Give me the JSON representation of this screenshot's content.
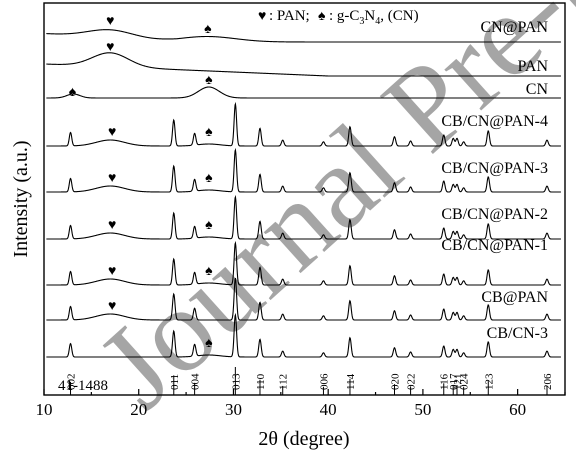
{
  "chart_data": {
    "type": "line",
    "title": "",
    "xlabel": "2θ (degree)",
    "ylabel": "Intensity (a.u.)",
    "xlim": [
      10,
      65
    ],
    "xticks": [
      10,
      20,
      30,
      40,
      50,
      60
    ],
    "legend": {
      "heart_label": ": PAN;",
      "spade_label": ": g-C",
      "spade_sub1": "3",
      "spade_mid": "N",
      "spade_sub2": "4",
      "spade_tail": ", (CN)"
    },
    "reference": {
      "label": "41-1488",
      "lines": [
        {
          "x": 12.8,
          "hkl": "002",
          "h": 0.32
        },
        {
          "x": 23.7,
          "hkl": "011",
          "h": 0.62
        },
        {
          "x": 25.9,
          "hkl": "004",
          "h": 0.28
        },
        {
          "x": 30.2,
          "hkl": "013",
          "h": 1.0
        },
        {
          "x": 32.8,
          "hkl": "110",
          "h": 0.42
        },
        {
          "x": 35.2,
          "hkl": "112",
          "h": 0.14
        },
        {
          "x": 39.5,
          "hkl": "006",
          "h": 0.1
        },
        {
          "x": 42.3,
          "hkl": "114",
          "h": 0.46
        },
        {
          "x": 47.0,
          "hkl": "020",
          "h": 0.22
        },
        {
          "x": 48.7,
          "hkl": "022",
          "h": 0.12
        },
        {
          "x": 52.2,
          "hkl": "116",
          "h": 0.26
        },
        {
          "x": 53.2,
          "hkl": "017",
          "h": 0.18
        },
        {
          "x": 53.6,
          "hkl": "121",
          "h": 0.18
        },
        {
          "x": 54.3,
          "hkl": "024",
          "h": 0.1
        },
        {
          "x": 56.9,
          "hkl": "123",
          "h": 0.36
        },
        {
          "x": 63.1,
          "hkl": "206",
          "h": 0.14
        }
      ]
    },
    "series": [
      {
        "name": "CN@PAN",
        "kind": "cnpan"
      },
      {
        "name": "PAN",
        "kind": "pan"
      },
      {
        "name": "CN",
        "kind": "cn"
      },
      {
        "name": "CB/CN@PAN-4",
        "kind": "composite",
        "pan": true,
        "cn": true
      },
      {
        "name": "CB/CN@PAN-3",
        "kind": "composite",
        "pan": true,
        "cn": true
      },
      {
        "name": "CB/CN@PAN-2",
        "kind": "composite",
        "pan": true,
        "cn": true
      },
      {
        "name": "CB/CN@PAN-1",
        "kind": "composite",
        "pan": true,
        "cn": true
      },
      {
        "name": "CB@PAN",
        "kind": "composite",
        "pan": true,
        "cn": false
      },
      {
        "name": "CB/CN-3",
        "kind": "composite",
        "pan": false,
        "cn": true
      }
    ],
    "phase_markers": {
      "heart": "♥",
      "spade": "♠"
    }
  },
  "watermark": {
    "text": "Journal Pre-proof"
  }
}
